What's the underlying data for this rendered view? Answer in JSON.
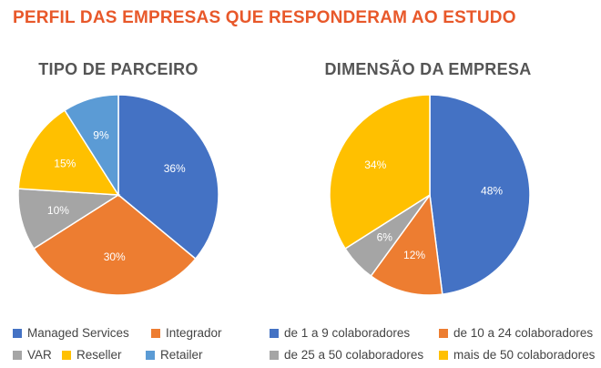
{
  "page_title": "PERFIL DAS EMPRESAS QUE RESPONDERAM AO ESTUDO",
  "chart_data": [
    {
      "type": "pie",
      "title": "TIPO DE PARCEIRO",
      "categories": [
        "Managed Services",
        "Integrador",
        "VAR",
        "Reseller",
        "Retailer"
      ],
      "values": [
        36,
        30,
        10,
        15,
        9
      ],
      "labels": [
        "36%",
        "30%",
        "10%",
        "15%",
        "9%"
      ],
      "colors": [
        "#4472c4",
        "#ed7d31",
        "#a5a5a5",
        "#ffc000",
        "#5b9bd5"
      ],
      "start_angle_deg": 0,
      "direction": "clockwise",
      "legend_position": "bottom"
    },
    {
      "type": "pie",
      "title": "DIMENSÃO DA EMPRESA",
      "categories": [
        "de 1 a 9 colaboradores",
        "de 10 a 24 colaboradores",
        "de 25 a 50 colaboradores",
        "mais de 50 colaboradores"
      ],
      "values": [
        48,
        12,
        6,
        34
      ],
      "labels": [
        "48%",
        "12%",
        "6%",
        "34%"
      ],
      "colors": [
        "#4472c4",
        "#ed7d31",
        "#a5a5a5",
        "#ffc000"
      ],
      "start_angle_deg": 0,
      "direction": "clockwise",
      "legend_position": "bottom"
    }
  ]
}
